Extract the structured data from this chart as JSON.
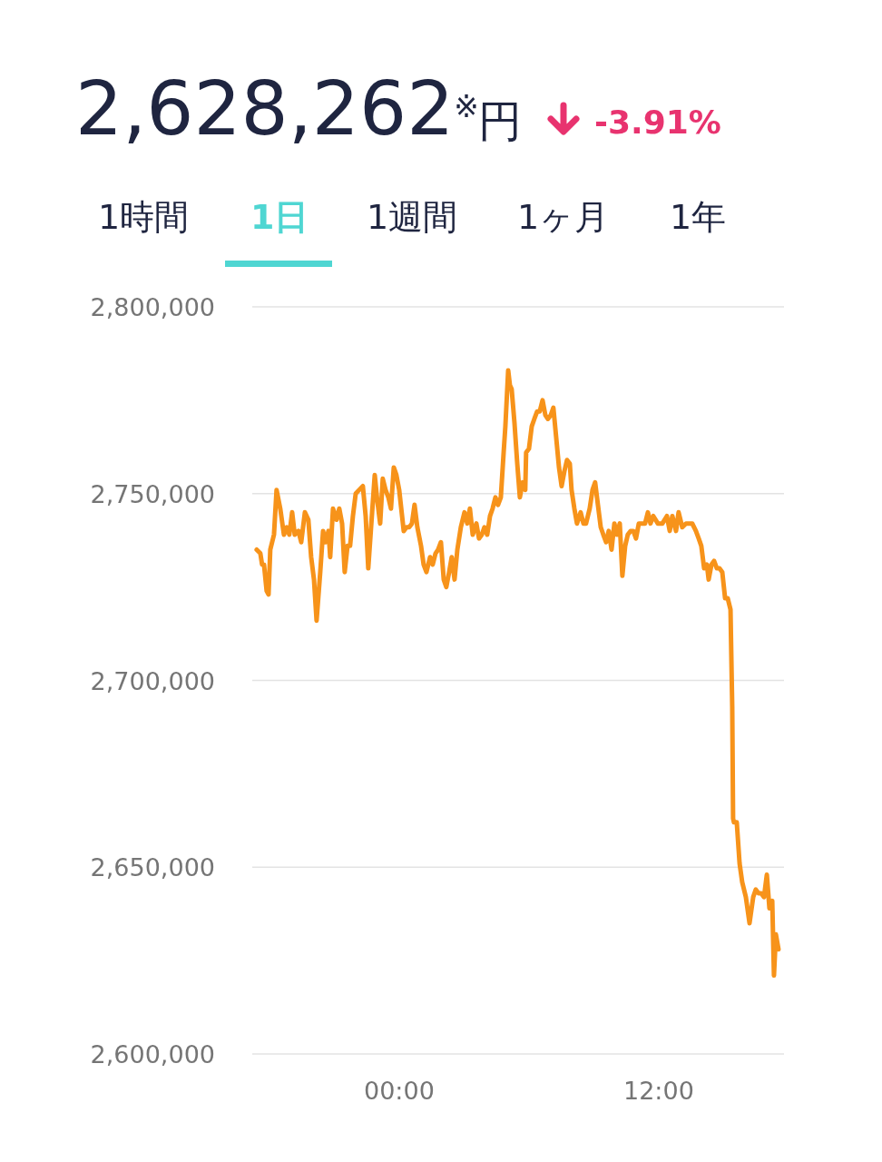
{
  "chart_data": {
    "type": "line",
    "title": "2,628,262$^{※}$",
    "annotations": [
      "円",
      "-3.91%",
      "1時間",
      "1日",
      "1週間",
      "1ヶ月",
      "1年"
    ],
    "xlim": [
      -6.71,
      17.71
    ],
    "xticks": [
      {
        "value": 0,
        "label": "00:00"
      },
      {
        "value": 12,
        "label": "12:00"
      }
    ],
    "ylim": [
      2600000,
      2800000
    ],
    "yticks": [
      {
        "value": 2600000,
        "label": "2,600,000"
      },
      {
        "value": 2650000,
        "label": "2,650,000"
      },
      {
        "value": 2700000,
        "label": "2,700,000"
      },
      {
        "value": 2750000,
        "label": "2,750,000"
      },
      {
        "value": 2800000,
        "label": "2,800,000"
      }
    ],
    "grid": "y",
    "marker": "none",
    "line_style": "solid",
    "series": [
      {
        "color": "#f7931a",
        "x": [
          -6.59,
          -6.42,
          -6.34,
          -6.25,
          -6.13,
          -6.04,
          -5.96,
          -5.79,
          -5.67,
          -5.5,
          -5.33,
          -5.2,
          -5.08,
          -4.95,
          -4.83,
          -4.66,
          -4.53,
          -4.36,
          -4.2,
          -4.07,
          -3.94,
          -3.82,
          -3.65,
          -3.52,
          -3.4,
          -3.27,
          -3.19,
          -3.06,
          -2.9,
          -2.77,
          -2.64,
          -2.52,
          -2.39,
          -2.27,
          -2.14,
          -2.01,
          -1.85,
          -1.68,
          -1.55,
          -1.43,
          -1.3,
          -1.13,
          -1.01,
          -0.88,
          -0.76,
          -0.63,
          -0.5,
          -0.38,
          -0.25,
          -0.13,
          0,
          0.21,
          0.34,
          0.46,
          0.59,
          0.71,
          0.84,
          1.01,
          1.13,
          1.26,
          1.43,
          1.55,
          1.68,
          1.8,
          1.93,
          2.06,
          2.18,
          2.31,
          2.43,
          2.56,
          2.69,
          2.85,
          3.02,
          3.15,
          3.27,
          3.4,
          3.57,
          3.69,
          3.82,
          3.94,
          4.07,
          4.2,
          4.32,
          4.45,
          4.57,
          4.7,
          4.83,
          4.91,
          5.04,
          5.12,
          5.2,
          5.33,
          5.46,
          5.58,
          5.71,
          5.83,
          5.87,
          6.0,
          6.13,
          6.25,
          6.38,
          6.5,
          6.63,
          6.76,
          6.88,
          7.01,
          7.13,
          7.26,
          7.39,
          7.51,
          7.64,
          7.76,
          7.89,
          7.97,
          8.1,
          8.22,
          8.39,
          8.52,
          8.64,
          8.81,
          8.94,
          9.06,
          9.19,
          9.32,
          9.44,
          9.57,
          9.69,
          9.82,
          9.95,
          10.07,
          10.2,
          10.32,
          10.45,
          10.57,
          10.7,
          10.83,
          10.95,
          11.08,
          11.2,
          11.37,
          11.5,
          11.62,
          11.75,
          11.96,
          12.17,
          12.38,
          12.51,
          12.63,
          12.8,
          12.92,
          13.09,
          13.26,
          13.43,
          13.55,
          13.72,
          13.85,
          13.97,
          14.1,
          14.23,
          14.31,
          14.44,
          14.56,
          14.69,
          14.81,
          14.94,
          15.07,
          15.19,
          15.32,
          15.4,
          15.44,
          15.48,
          15.61,
          15.74,
          15.86,
          16.03,
          16.2,
          16.37,
          16.49,
          16.62,
          16.74,
          16.87,
          17.0,
          17.12,
          17.25,
          17.33,
          17.42,
          17.54
        ],
        "values": [
          2735000,
          2734000,
          2731000,
          2731000,
          2724000,
          2723000,
          2735000,
          2739000,
          2751000,
          2746000,
          2739000,
          2741000,
          2739000,
          2745000,
          2739000,
          2740000,
          2737000,
          2745000,
          2743000,
          2733000,
          2727000,
          2716000,
          2729000,
          2740000,
          2737000,
          2740000,
          2733000,
          2746000,
          2743000,
          2746000,
          2742000,
          2729000,
          2736000,
          2736000,
          2744000,
          2750000,
          2751000,
          2752000,
          2744000,
          2730000,
          2741000,
          2755000,
          2748000,
          2742000,
          2754000,
          2751000,
          2749000,
          2746000,
          2757000,
          2755000,
          2751000,
          2740000,
          2741000,
          2741000,
          2742000,
          2747000,
          2741000,
          2736000,
          2731000,
          2729000,
          2733000,
          2731000,
          2734000,
          2735000,
          2737000,
          2727000,
          2725000,
          2729000,
          2733000,
          2727000,
          2735000,
          2741000,
          2745000,
          2742000,
          2746000,
          2739000,
          2742000,
          2738000,
          2739000,
          2741000,
          2739000,
          2744000,
          2746000,
          2749000,
          2747000,
          2749000,
          2761000,
          2768000,
          2783000,
          2779000,
          2778000,
          2769000,
          2758000,
          2749000,
          2753000,
          2751000,
          2761000,
          2762000,
          2768000,
          2770000,
          2772000,
          2772000,
          2775000,
          2771000,
          2770000,
          2771000,
          2773000,
          2765000,
          2757000,
          2752000,
          2756000,
          2759000,
          2758000,
          2751000,
          2746000,
          2742000,
          2745000,
          2742000,
          2742000,
          2746000,
          2751000,
          2753000,
          2747000,
          2741000,
          2739000,
          2737000,
          2740000,
          2735000,
          2742000,
          2739000,
          2742000,
          2728000,
          2736000,
          2739000,
          2740000,
          2740000,
          2738000,
          2742000,
          2742000,
          2742000,
          2745000,
          2742000,
          2744000,
          2742000,
          2742000,
          2744000,
          2740000,
          2744000,
          2740000,
          2745000,
          2741000,
          2742000,
          2742000,
          2742000,
          2740000,
          2738000,
          2736000,
          2730000,
          2731000,
          2727000,
          2731000,
          2732000,
          2730000,
          2730000,
          2729000,
          2722000,
          2722000,
          2719000,
          2693000,
          2663000,
          2662000,
          2662000,
          2651000,
          2646000,
          2642000,
          2635000,
          2642000,
          2644000,
          2643000,
          2643000,
          2642000,
          2648000,
          2639000,
          2641000,
          2621000,
          2632000,
          2628000
        ]
      }
    ]
  }
}
